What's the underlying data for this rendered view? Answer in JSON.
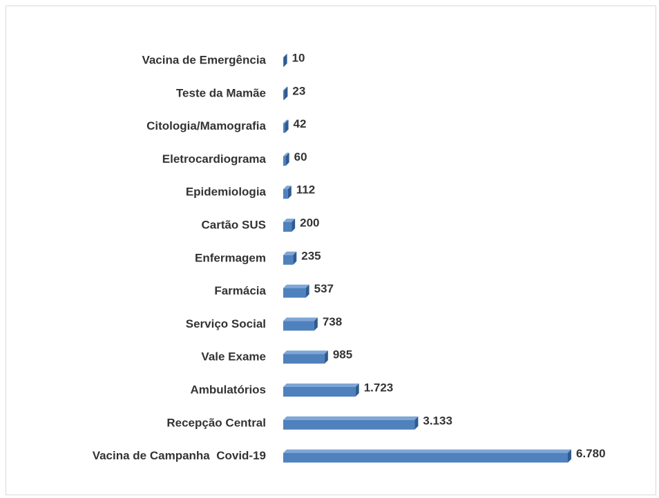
{
  "chart_data": {
    "type": "bar",
    "orientation": "horizontal",
    "color": "#4f81bd",
    "categories": [
      "Vacina de Emergência",
      "Teste da Mamãe",
      "Citologia/Mamografia",
      "Eletrocardiograma",
      "Epidemiologia",
      "Cartão SUS",
      "Enfermagem",
      "Farmácia",
      "Serviço Social",
      "Vale Exame",
      "Ambulatórios",
      "Recepção Central",
      "Vacina de Campanha  Covid-19"
    ],
    "values": [
      10,
      23,
      42,
      60,
      112,
      200,
      235,
      537,
      738,
      985,
      1723,
      3133,
      6780
    ],
    "value_labels": [
      "10",
      "23",
      "42",
      "60",
      "112",
      "200",
      "235",
      "537",
      "738",
      "985",
      "1.723",
      "3.133",
      "6.780"
    ]
  }
}
